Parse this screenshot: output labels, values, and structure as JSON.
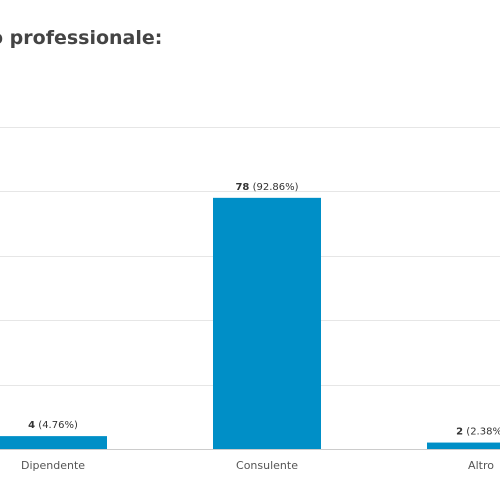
{
  "chart_data": {
    "type": "bar",
    "title": "o professionale:",
    "categories": [
      "Dipendente",
      "Consulente",
      "Altro"
    ],
    "values": [
      4,
      78,
      2
    ],
    "value_labels": [
      "4",
      "78",
      "2"
    ],
    "percent_labels": [
      "(4.76%)",
      "(92.86%)",
      "(2.38%)"
    ],
    "xlabel": "",
    "ylabel": "",
    "ylim": [
      0,
      100
    ],
    "grid": true,
    "bar_color": "#008fc7",
    "grid_color": "#e6e6e6",
    "axis_color": "#cccccc",
    "text_color": "#333333"
  }
}
